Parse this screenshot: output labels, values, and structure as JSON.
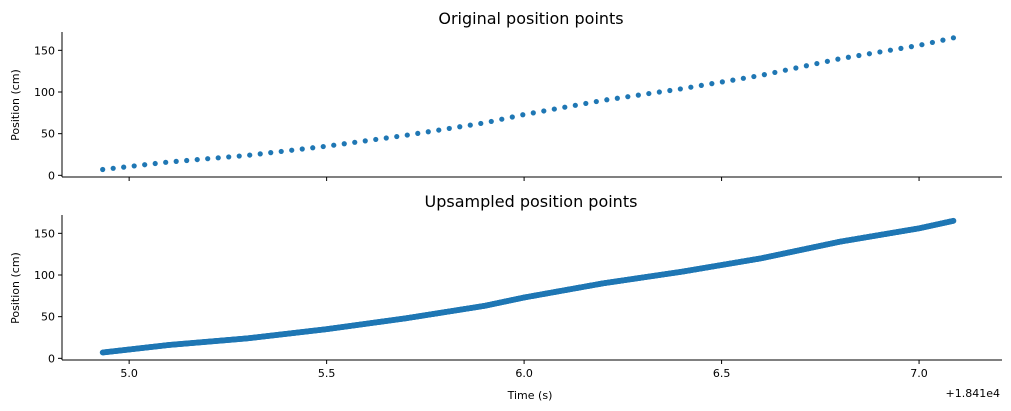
{
  "chart_data": [
    {
      "type": "scatter",
      "title": "Original position points",
      "xlabel": "",
      "ylabel": "Position (cm)",
      "xlim": [
        4.83,
        7.21
      ],
      "ylim": [
        -2,
        172
      ],
      "x_offset_label": "",
      "xticks": [
        5.0,
        5.5,
        6.0,
        6.5,
        7.0
      ],
      "xtick_labels": [
        "",
        "",
        "",
        "",
        ""
      ],
      "yticks": [
        0,
        50,
        100,
        150
      ],
      "ytick_labels": [
        "0",
        "50",
        "100",
        "150"
      ],
      "grid": false,
      "legend": "none",
      "color": "#1f77b4",
      "x_range": [
        4.933,
        7.087
      ],
      "n_points": 82,
      "y_anchors_x": [
        4.933,
        5.1,
        5.3,
        5.5,
        5.7,
        5.9,
        6.0,
        6.2,
        6.4,
        6.6,
        6.8,
        7.0,
        7.087
      ],
      "y_anchors_y": [
        7,
        16,
        24,
        35,
        48,
        63,
        73,
        90,
        104,
        120,
        140,
        156,
        165
      ]
    },
    {
      "type": "scatter",
      "title": "Upsampled position points",
      "xlabel": "Time (s)",
      "ylabel": "Position (cm)",
      "xlim": [
        4.83,
        7.21
      ],
      "ylim": [
        -2,
        172
      ],
      "x_offset_label": "+1.841e4",
      "xticks": [
        5.0,
        5.5,
        6.0,
        6.5,
        7.0
      ],
      "xtick_labels": [
        "5.0",
        "5.5",
        "6.0",
        "6.5",
        "7.0"
      ],
      "yticks": [
        0,
        50,
        100,
        150
      ],
      "ytick_labels": [
        "0",
        "50",
        "100",
        "150"
      ],
      "grid": false,
      "legend": "none",
      "color": "#1f77b4",
      "x_range": [
        4.933,
        7.087
      ],
      "n_points": 1300,
      "y_anchors_x": [
        4.933,
        5.1,
        5.3,
        5.5,
        5.7,
        5.9,
        6.0,
        6.2,
        6.4,
        6.6,
        6.8,
        7.0,
        7.087
      ],
      "y_anchors_y": [
        7,
        16,
        24,
        35,
        48,
        63,
        73,
        90,
        104,
        120,
        140,
        156,
        165
      ]
    }
  ]
}
